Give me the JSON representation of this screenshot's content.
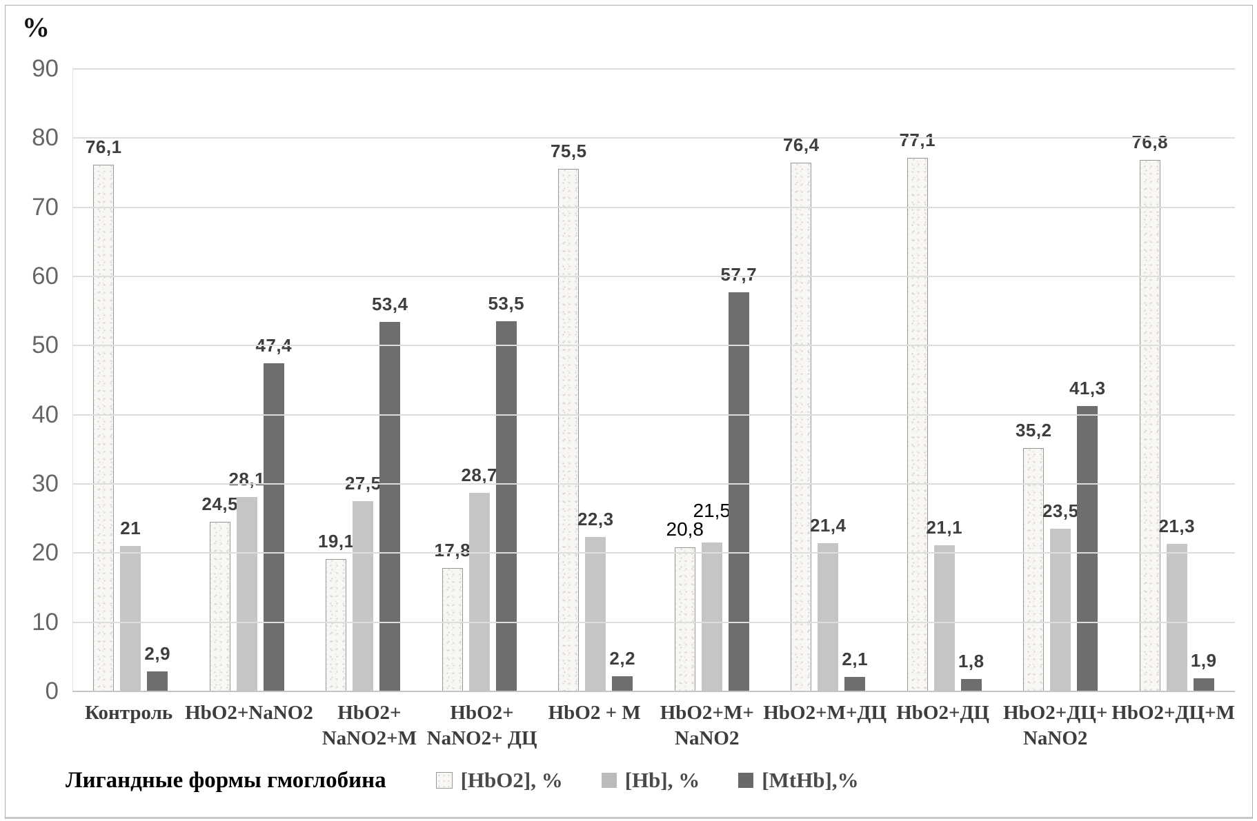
{
  "chart_data": {
    "type": "bar",
    "title": "",
    "y_axis_title": "%",
    "x_axis_title": "Лигандные формы гмоглобина",
    "ylim": [
      0,
      90
    ],
    "y_ticks": [
      0,
      10,
      20,
      30,
      40,
      50,
      60,
      70,
      80,
      90
    ],
    "grid": true,
    "legend_position": "bottom",
    "categories": [
      "Контроль",
      "HbO2+NaNO2",
      "HbO2+\nNaNO2+M",
      "HbO2+\nNaNO2+ ДЦ",
      "HbO2 + M",
      "HbO2+M+\nNaNO2",
      "HbO2+M+ДЦ",
      "HbO2+ДЦ",
      "HbO2+ДЦ+\nNaNO2",
      "HbO2+ДЦ+М"
    ],
    "series": [
      {
        "name": "[HbO2], %",
        "color": "#f8f7f4",
        "border_color": "#979797",
        "texture": "speckled",
        "values": [
          76.1,
          24.5,
          19.1,
          17.8,
          75.5,
          20.8,
          76.4,
          77.1,
          35.2,
          76.8
        ],
        "labels": [
          "76,1",
          "24,5",
          "19,1",
          "17,8",
          "75,5",
          "20,8",
          "76,4",
          "77,1",
          "35,2",
          "76,8"
        ]
      },
      {
        "name": "[Hb], %",
        "color": "#c5c5c5",
        "values": [
          21,
          28.1,
          27.5,
          28.7,
          22.3,
          21.5,
          21.4,
          21.1,
          23.5,
          21.3
        ],
        "labels": [
          "21",
          "28,1",
          "27,5",
          "28,7",
          "22,3",
          "21,5",
          "21,4",
          "21,1",
          "23,5",
          "21,3"
        ]
      },
      {
        "name": "[MtHb],%",
        "color": "#6e6e6e",
        "values": [
          2.9,
          47.4,
          53.4,
          53.5,
          2.2,
          57.7,
          2.1,
          1.8,
          41.3,
          1.9
        ],
        "labels": [
          "2,9",
          "47,4",
          "53,4",
          "53,5",
          "2,2",
          "57,7",
          "2,1",
          "1,8",
          "41,3",
          "1,9"
        ]
      }
    ],
    "plain_labels": [
      [
        5,
        0
      ],
      [
        5,
        1
      ]
    ],
    "raised_labels": [
      [
        5,
        1
      ]
    ]
  }
}
